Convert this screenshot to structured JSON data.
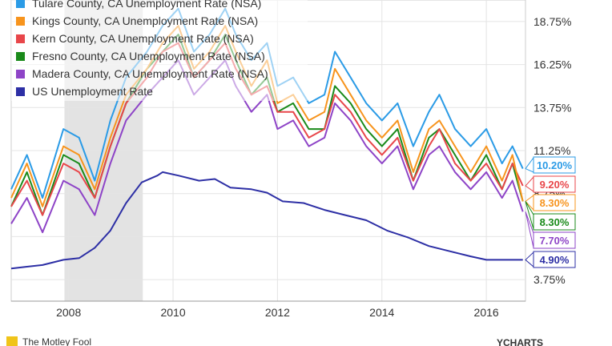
{
  "chart_data": {
    "type": "line",
    "title": "",
    "xlabel": "",
    "ylabel": "",
    "xlim": [
      2006.9,
      2016.75
    ],
    "ylim": [
      2.5,
      20.0
    ],
    "x_ticks": [
      2008,
      2010,
      2012,
      2014,
      2016
    ],
    "x_tick_labels": [
      "2008",
      "2010",
      "2012",
      "2014",
      "2016"
    ],
    "y_ticks": [
      3.75,
      6.25,
      8.75,
      11.25,
      13.75,
      16.25,
      18.75
    ],
    "y_tick_labels": [
      "3.75%",
      "6.25%",
      "8.75%",
      "11.25%",
      "13.75%",
      "16.25%",
      "18.75%"
    ],
    "grid": true,
    "legend_position": "top-left",
    "recession_shading": [
      2007.92,
      2009.42
    ],
    "series": [
      {
        "name": "Tulare County, CA Unemployment Rate (NSA)",
        "color": "#2b9be6",
        "end_label": "10.20%",
        "x": [
          2006.9,
          2007.2,
          2007.5,
          2007.9,
          2008.2,
          2008.5,
          2008.8,
          2009.1,
          2009.5,
          2009.8,
          2010.1,
          2010.4,
          2010.7,
          2011.0,
          2011.2,
          2011.5,
          2011.8,
          2012.0,
          2012.3,
          2012.6,
          2012.9,
          2013.1,
          2013.4,
          2013.7,
          2014.0,
          2014.3,
          2014.6,
          2014.9,
          2015.1,
          2015.4,
          2015.7,
          2016.0,
          2016.3,
          2016.5,
          2016.7
        ],
        "y": [
          9.0,
          11.0,
          8.5,
          12.5,
          12.0,
          9.5,
          13.0,
          15.5,
          17.0,
          18.5,
          19.5,
          17.0,
          18.0,
          19.5,
          18.0,
          16.5,
          17.5,
          15.0,
          15.5,
          14.0,
          14.5,
          17.0,
          15.5,
          14.0,
          13.0,
          14.0,
          11.5,
          13.5,
          14.5,
          12.5,
          11.5,
          12.5,
          10.5,
          11.5,
          10.2
        ]
      },
      {
        "name": "Kings County, CA Unemployment Rate (NSA)",
        "color": "#f7941d",
        "end_label": "8.30%",
        "x": [
          2006.9,
          2007.2,
          2007.5,
          2007.9,
          2008.2,
          2008.5,
          2008.8,
          2009.1,
          2009.5,
          2009.8,
          2010.1,
          2010.4,
          2010.7,
          2011.0,
          2011.2,
          2011.5,
          2011.8,
          2012.0,
          2012.3,
          2012.6,
          2012.9,
          2013.1,
          2013.4,
          2013.7,
          2014.0,
          2014.3,
          2014.6,
          2014.9,
          2015.1,
          2015.4,
          2015.7,
          2016.0,
          2016.3,
          2016.5,
          2016.7
        ],
        "y": [
          8.5,
          10.5,
          8.0,
          11.5,
          11.0,
          9.0,
          12.0,
          14.5,
          16.0,
          17.5,
          18.5,
          16.0,
          17.0,
          18.5,
          17.0,
          15.0,
          16.5,
          14.0,
          14.5,
          13.0,
          13.5,
          16.0,
          14.5,
          13.0,
          12.0,
          13.0,
          10.0,
          12.5,
          13.0,
          11.5,
          10.0,
          11.5,
          9.5,
          11.0,
          8.3
        ]
      },
      {
        "name": "Kern County, CA Unemployment Rate (NSA)",
        "color": "#e8464a",
        "end_label": "9.20%",
        "x": [
          2006.9,
          2007.2,
          2007.5,
          2007.9,
          2008.2,
          2008.5,
          2008.8,
          2009.1,
          2009.5,
          2009.8,
          2010.1,
          2010.4,
          2010.7,
          2011.0,
          2011.2,
          2011.5,
          2011.8,
          2012.0,
          2012.3,
          2012.6,
          2012.9,
          2013.1,
          2013.4,
          2013.7,
          2014.0,
          2014.3,
          2014.6,
          2014.9,
          2015.1,
          2015.4,
          2015.7,
          2016.0,
          2016.3,
          2016.5,
          2016.7
        ],
        "y": [
          8.0,
          9.5,
          7.5,
          10.5,
          10.0,
          8.5,
          11.5,
          14.0,
          15.5,
          17.0,
          17.5,
          15.5,
          16.5,
          17.5,
          16.0,
          14.5,
          15.0,
          13.5,
          13.5,
          12.0,
          12.5,
          14.5,
          13.5,
          12.0,
          11.0,
          12.0,
          9.5,
          11.5,
          12.5,
          10.5,
          9.5,
          10.5,
          9.0,
          10.5,
          9.2
        ]
      },
      {
        "name": "Fresno County, CA Unemployment Rate (NSA)",
        "color": "#1a8a1a",
        "end_label": "8.30%",
        "x": [
          2006.9,
          2007.2,
          2007.5,
          2007.9,
          2008.2,
          2008.5,
          2008.8,
          2009.1,
          2009.5,
          2009.8,
          2010.1,
          2010.4,
          2010.7,
          2011.0,
          2011.2,
          2011.5,
          2011.8,
          2012.0,
          2012.3,
          2012.6,
          2012.9,
          2013.1,
          2013.4,
          2013.7,
          2014.0,
          2014.3,
          2014.6,
          2014.9,
          2015.1,
          2015.4,
          2015.7,
          2016.0,
          2016.3,
          2016.5,
          2016.7
        ],
        "y": [
          8.0,
          10.0,
          7.5,
          11.0,
          10.5,
          8.5,
          11.5,
          14.0,
          16.0,
          17.0,
          18.0,
          15.5,
          16.5,
          18.0,
          16.5,
          14.5,
          15.5,
          13.5,
          14.0,
          12.5,
          12.5,
          15.0,
          14.0,
          12.5,
          11.5,
          12.5,
          9.5,
          12.0,
          12.5,
          11.0,
          9.5,
          11.0,
          9.0,
          10.5,
          8.3
        ]
      },
      {
        "name": "Madera County, CA Unemployment Rate (NSA)",
        "color": "#8e44c7",
        "end_label": "7.70%",
        "x": [
          2006.9,
          2007.2,
          2007.5,
          2007.9,
          2008.2,
          2008.5,
          2008.8,
          2009.1,
          2009.5,
          2009.8,
          2010.1,
          2010.4,
          2010.7,
          2011.0,
          2011.2,
          2011.5,
          2011.8,
          2012.0,
          2012.3,
          2012.6,
          2012.9,
          2013.1,
          2013.4,
          2013.7,
          2014.0,
          2014.3,
          2014.6,
          2014.9,
          2015.1,
          2015.4,
          2015.7,
          2016.0,
          2016.3,
          2016.5,
          2016.7
        ],
        "y": [
          7.0,
          8.5,
          6.5,
          9.5,
          9.0,
          7.5,
          10.5,
          13.0,
          14.5,
          15.5,
          16.5,
          14.5,
          15.5,
          16.5,
          15.0,
          13.5,
          14.5,
          12.5,
          13.0,
          11.5,
          12.0,
          14.0,
          13.0,
          11.5,
          10.5,
          11.5,
          9.0,
          11.0,
          11.5,
          10.0,
          9.0,
          10.0,
          8.5,
          9.5,
          7.7
        ]
      },
      {
        "name": "US Unemployment Rate",
        "color": "#2d2fa5",
        "end_label": "4.90%",
        "x": [
          2006.9,
          2007.2,
          2007.5,
          2007.9,
          2008.2,
          2008.5,
          2008.8,
          2009.1,
          2009.4,
          2009.7,
          2009.8,
          2010.1,
          2010.5,
          2010.8,
          2011.1,
          2011.5,
          2011.8,
          2012.1,
          2012.5,
          2012.9,
          2013.3,
          2013.7,
          2014.1,
          2014.5,
          2014.9,
          2015.3,
          2015.7,
          2016.0,
          2016.3,
          2016.5,
          2016.7
        ],
        "y": [
          4.4,
          4.5,
          4.6,
          4.9,
          5.0,
          5.6,
          6.6,
          8.2,
          9.4,
          9.8,
          10.0,
          9.8,
          9.5,
          9.6,
          9.1,
          9.0,
          8.8,
          8.3,
          8.2,
          7.8,
          7.5,
          7.2,
          6.6,
          6.2,
          5.7,
          5.4,
          5.1,
          4.9,
          4.9,
          4.9,
          4.9
        ]
      }
    ]
  },
  "footer": {
    "logo_text": "The Motley Fool",
    "brand_text": "YCHARTS"
  }
}
